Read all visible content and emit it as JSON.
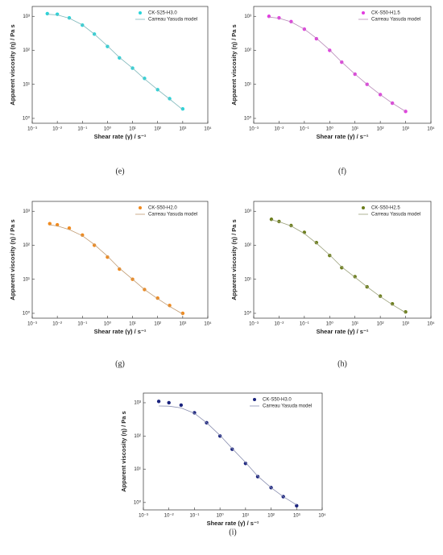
{
  "chart_data": [
    {
      "type": "line",
      "caption": "(e)",
      "xlabel": "Shear rate (γ̇) / s⁻¹",
      "ylabel": "Apparent viscosity (η) / Pa s",
      "xlog": true,
      "ylog": true,
      "x": [
        0.004,
        0.01,
        0.03,
        0.1,
        0.3,
        1,
        3,
        10,
        30,
        100,
        300,
        1000
      ],
      "series": [
        {
          "name": "CK-S25-H3.0",
          "color": "#29d4d9",
          "marker": true,
          "values": [
            1200,
            1150,
            900,
            550,
            300,
            130,
            60,
            30,
            15,
            7,
            3.8,
            1.9
          ]
        },
        {
          "name": "Carreau Yasuda model",
          "color": "#7fb8bb",
          "marker": false,
          "values": [
            1150,
            1100,
            880,
            560,
            300,
            135,
            62,
            30,
            14.5,
            7,
            3.7,
            1.8
          ]
        }
      ],
      "xlim": [
        0.001,
        10000
      ],
      "ylim": [
        0.72,
        1950
      ],
      "xticks": [
        {
          "value": 0.001,
          "label": "10⁻³"
        },
        {
          "value": 0.01,
          "label": "10⁻²"
        },
        {
          "value": 0.1,
          "label": "10⁻¹"
        },
        {
          "value": 1,
          "label": "10⁰"
        },
        {
          "value": 10,
          "label": "10¹"
        },
        {
          "value": 100,
          "label": "10²"
        },
        {
          "value": 1000,
          "label": "10³"
        },
        {
          "value": 10000,
          "label": "10⁴"
        }
      ],
      "yticks": [
        {
          "value": 1,
          "label": "10⁰"
        },
        {
          "value": 10,
          "label": "10¹"
        },
        {
          "value": 100,
          "label": "10²"
        },
        {
          "value": 1000,
          "label": "10³"
        }
      ]
    },
    {
      "type": "line",
      "caption": "(f)",
      "xlabel": "Shear rate (γ̇) / s⁻¹",
      "ylabel": "Apparent viscosity (η) / Pa s",
      "xlog": true,
      "ylog": true,
      "x": [
        0.004,
        0.01,
        0.03,
        0.1,
        0.3,
        1,
        3,
        10,
        30,
        100,
        300,
        1000
      ],
      "series": [
        {
          "name": "CK-S50-H1.5",
          "color": "#e23ce0",
          "marker": true,
          "values": [
            1000,
            900,
            700,
            420,
            220,
            100,
            45,
            20,
            10,
            5,
            2.8,
            1.6
          ]
        },
        {
          "name": "Carreau Yasuda model",
          "color": "#b88ab8",
          "marker": false,
          "values": [
            950,
            880,
            690,
            420,
            225,
            102,
            45,
            20,
            10,
            5,
            2.8,
            1.6
          ]
        }
      ],
      "xlim": [
        0.001,
        10000
      ],
      "ylim": [
        0.72,
        1950
      ],
      "xticks": [
        {
          "value": 0.001,
          "label": "10⁻³"
        },
        {
          "value": 0.01,
          "label": "10⁻²"
        },
        {
          "value": 0.1,
          "label": "10⁻¹"
        },
        {
          "value": 1,
          "label": "10⁰"
        },
        {
          "value": 10,
          "label": "10¹"
        },
        {
          "value": 100,
          "label": "10²"
        },
        {
          "value": 1000,
          "label": "10³"
        },
        {
          "value": 10000,
          "label": "10⁴"
        }
      ],
      "yticks": [
        {
          "value": 1,
          "label": "10⁰"
        },
        {
          "value": 10,
          "label": "10¹"
        },
        {
          "value": 100,
          "label": "10²"
        },
        {
          "value": 1000,
          "label": "10³"
        }
      ]
    },
    {
      "type": "line",
      "caption": "(g)",
      "xlabel": "Shear rate (γ̇) / s⁻¹",
      "ylabel": "Apparent viscosity (η) / Pa s",
      "xlog": true,
      "ylog": true,
      "x": [
        0.005,
        0.01,
        0.03,
        0.1,
        0.3,
        1,
        3,
        10,
        30,
        100,
        300,
        1000
      ],
      "series": [
        {
          "name": "CK-S50-H2.0",
          "color": "#f08a1e",
          "marker": true,
          "values": [
            430,
            400,
            320,
            200,
            100,
            45,
            20,
            10,
            5,
            2.8,
            1.7,
            1.0
          ]
        },
        {
          "name": "Carreau Yasuda model",
          "color": "#c09a70",
          "marker": false,
          "values": [
            400,
            370,
            290,
            190,
            105,
            48,
            21,
            10,
            5,
            2.7,
            1.6,
            0.95
          ]
        }
      ],
      "xlim": [
        0.001,
        10000
      ],
      "ylim": [
        0.72,
        1950
      ],
      "xticks": [
        {
          "value": 0.001,
          "label": "10⁻³"
        },
        {
          "value": 0.01,
          "label": "10⁻²"
        },
        {
          "value": 0.1,
          "label": "10⁻¹"
        },
        {
          "value": 1,
          "label": "10⁰"
        },
        {
          "value": 10,
          "label": "10¹"
        },
        {
          "value": 100,
          "label": "10²"
        },
        {
          "value": 1000,
          "label": "10³"
        },
        {
          "value": 10000,
          "label": "10⁴"
        }
      ],
      "yticks": [
        {
          "value": 1,
          "label": "10⁰"
        },
        {
          "value": 10,
          "label": "10¹"
        },
        {
          "value": 100,
          "label": "10²"
        },
        {
          "value": 1000,
          "label": "10³"
        }
      ]
    },
    {
      "type": "line",
      "caption": "(h)",
      "xlabel": "Shear rate (γ̇) / s⁻¹",
      "ylabel": "Apparent viscosity (η) / Pa s",
      "xlog": true,
      "ylog": true,
      "x": [
        0.005,
        0.01,
        0.03,
        0.1,
        0.3,
        1,
        3,
        10,
        30,
        100,
        300,
        1000
      ],
      "series": [
        {
          "name": "CK-S50-H2.5",
          "color": "#6b7d1a",
          "marker": true,
          "values": [
            580,
            500,
            380,
            240,
            120,
            50,
            22,
            12,
            6,
            3.2,
            1.9,
            1.1
          ]
        },
        {
          "name": "Carreau Yasuda model",
          "color": "#9aa07a",
          "marker": false,
          "values": [
            560,
            490,
            370,
            220,
            115,
            52,
            23,
            11.5,
            6,
            3.1,
            1.8,
            1.05
          ]
        }
      ],
      "xlim": [
        0.001,
        10000
      ],
      "ylim": [
        0.72,
        1950
      ],
      "xticks": [
        {
          "value": 0.001,
          "label": "10⁻³"
        },
        {
          "value": 0.01,
          "label": "10⁻²"
        },
        {
          "value": 0.1,
          "label": "10⁻¹"
        },
        {
          "value": 1,
          "label": "10⁰"
        },
        {
          "value": 10,
          "label": "10¹"
        },
        {
          "value": 100,
          "label": "10²"
        },
        {
          "value": 1000,
          "label": "10³"
        },
        {
          "value": 10000,
          "label": "10⁴"
        }
      ],
      "yticks": [
        {
          "value": 1,
          "label": "10⁰"
        },
        {
          "value": 10,
          "label": "10¹"
        },
        {
          "value": 100,
          "label": "10²"
        },
        {
          "value": 1000,
          "label": "10³"
        }
      ]
    },
    {
      "type": "line",
      "caption": "(i)",
      "xlabel": "Shear rate (γ̇) / s⁻¹",
      "ylabel": "Apparent viscosity (η) / Pa s",
      "xlog": true,
      "ylog": true,
      "x": [
        0.004,
        0.01,
        0.03,
        0.1,
        0.3,
        1,
        3,
        10,
        30,
        100,
        300,
        1000
      ],
      "series": [
        {
          "name": "CK-S50-H3.0",
          "color": "#1a237e",
          "marker": true,
          "values": [
            1100,
            1000,
            850,
            500,
            250,
            100,
            40,
            15,
            6,
            2.8,
            1.5,
            0.8
          ]
        },
        {
          "name": "Carreau Yasuda model",
          "color": "#8a8fb0",
          "marker": false,
          "values": [
            800,
            790,
            700,
            480,
            250,
            105,
            42,
            16,
            6.2,
            2.8,
            1.5,
            0.85
          ]
        }
      ],
      "xlim": [
        0.001,
        10000
      ],
      "ylim": [
        0.6,
        1950
      ],
      "xticks": [
        {
          "value": 0.001,
          "label": "10⁻³"
        },
        {
          "value": 0.01,
          "label": "10⁻²"
        },
        {
          "value": 0.1,
          "label": "10⁻¹"
        },
        {
          "value": 1,
          "label": "10⁰"
        },
        {
          "value": 10,
          "label": "10¹"
        },
        {
          "value": 100,
          "label": "10²"
        },
        {
          "value": 1000,
          "label": "10³"
        },
        {
          "value": 10000,
          "label": "10⁴"
        }
      ],
      "yticks": [
        {
          "value": 1,
          "label": "10⁰"
        },
        {
          "value": 10,
          "label": "10¹"
        },
        {
          "value": 100,
          "label": "10²"
        },
        {
          "value": 1000,
          "label": "10³"
        }
      ]
    }
  ]
}
